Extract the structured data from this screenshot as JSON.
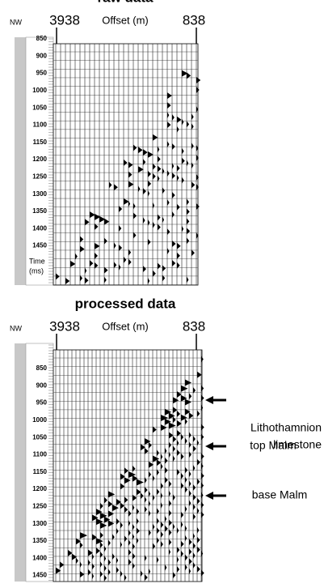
{
  "figure": {
    "panels": [
      {
        "title": "raw data",
        "orientation": "NW",
        "offset_start": "3938",
        "offset_label": "Offset (m)",
        "offset_end": "838",
        "time_ticks": [
          "850",
          "900",
          "950",
          "1000",
          "1050",
          "1100",
          "1150",
          "1200",
          "1250",
          "1300",
          "1350",
          "1400",
          "1450"
        ],
        "time_label": [
          "Time",
          "(ms)"
        ]
      },
      {
        "title": "processed data",
        "orientation": "NW",
        "offset_start": "3938",
        "offset_label": "Offset (m)",
        "offset_end": "838",
        "time_ticks": [
          "850",
          "900",
          "950",
          "1000",
          "1050",
          "1100",
          "1150",
          "1200",
          "1250",
          "1300",
          "1350",
          "1400",
          "1450"
        ],
        "time_label": [
          "Time",
          "(ms)"
        ],
        "annotations": [
          {
            "lines": [
              "Lithothamnion",
              "limestone"
            ]
          },
          {
            "lines": [
              "top Malm"
            ]
          },
          {
            "lines": [
              "base Malm"
            ]
          }
        ]
      }
    ]
  }
}
